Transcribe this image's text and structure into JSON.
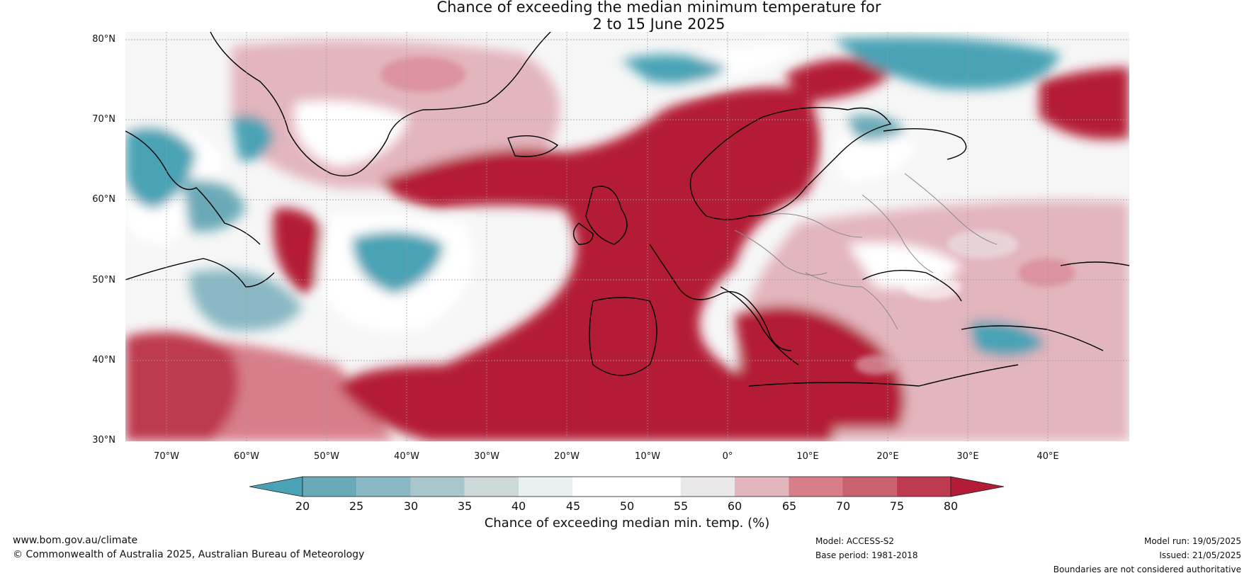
{
  "title": {
    "line1": "Chance of exceeding the median minimum temperature for",
    "line2": "2 to 15 June 2025"
  },
  "map": {
    "lat_ticks": [
      "80°N",
      "70°N",
      "60°N",
      "50°N",
      "40°N",
      "30°N"
    ],
    "lon_ticks": [
      "70°W",
      "60°W",
      "50°W",
      "40°W",
      "30°W",
      "20°W",
      "10°W",
      "0°",
      "10°E",
      "20°E",
      "30°E",
      "40°E"
    ],
    "colors": {
      "land_outline": "#000000",
      "borders": "#888888",
      "grid": "#9a9a9a"
    }
  },
  "colorbar": {
    "title": "Chance of exceeding median min. temp. (%)",
    "ticks": [
      "20",
      "25",
      "30",
      "35",
      "40",
      "45",
      "50",
      "55",
      "60",
      "65",
      "70",
      "75",
      "80"
    ],
    "colors": [
      "#4aa3b5",
      "#6aaab8",
      "#89b8c4",
      "#a9c6cc",
      "#cdd8d9",
      "#e8f0f1",
      "#ffffff",
      "#ffffff",
      "#ebe8e9",
      "#e3b5bd",
      "#d87e8b",
      "#c9616f",
      "#be3a4e",
      "#b41b36"
    ]
  },
  "footer": {
    "url": "www.bom.gov.au/climate",
    "copyright": "© Commonwealth of Australia 2025, Australian Bureau of Meteorology",
    "model": "Model: ACCESS-S2",
    "base_period": "Base period: 1981-2018",
    "model_run": "Model run: 19/05/2025",
    "issued": "Issued: 21/05/2025",
    "boundaries": "Boundaries are not considered authoritative"
  }
}
